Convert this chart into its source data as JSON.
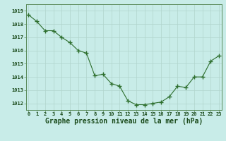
{
  "x": [
    0,
    1,
    2,
    3,
    4,
    5,
    6,
    7,
    8,
    9,
    10,
    11,
    12,
    13,
    14,
    15,
    16,
    17,
    18,
    19,
    20,
    21,
    22,
    23
  ],
  "y": [
    1018.7,
    1018.2,
    1017.5,
    1017.5,
    1017.0,
    1016.6,
    1016.0,
    1015.8,
    1014.1,
    1014.2,
    1013.5,
    1013.3,
    1012.2,
    1011.9,
    1011.9,
    1012.0,
    1012.1,
    1012.5,
    1013.3,
    1013.2,
    1014.0,
    1014.0,
    1015.2,
    1015.6
  ],
  "line_color": "#2d6e2d",
  "marker": "+",
  "marker_size": 4,
  "marker_lw": 1.0,
  "bg_color": "#c8ece8",
  "grid_color": "#b0d4cc",
  "ylim_min": 1011.5,
  "ylim_max": 1019.5,
  "ytick_vals": [
    1012,
    1013,
    1014,
    1015,
    1016,
    1017,
    1018,
    1019
  ],
  "xtick_vals": [
    0,
    1,
    2,
    3,
    4,
    5,
    6,
    7,
    8,
    9,
    10,
    11,
    12,
    13,
    14,
    15,
    16,
    17,
    18,
    19,
    20,
    21,
    22,
    23
  ],
  "xlabel": "Graphe pression niveau de la mer (hPa)",
  "xlabel_color": "#1a4a1a",
  "tick_label_color": "#1a4a1a",
  "tick_label_fontsize": 5.0,
  "xlabel_fontsize": 7.0,
  "xlabel_bold": true,
  "line_width": 0.8,
  "spine_color": "#5a8a5a"
}
